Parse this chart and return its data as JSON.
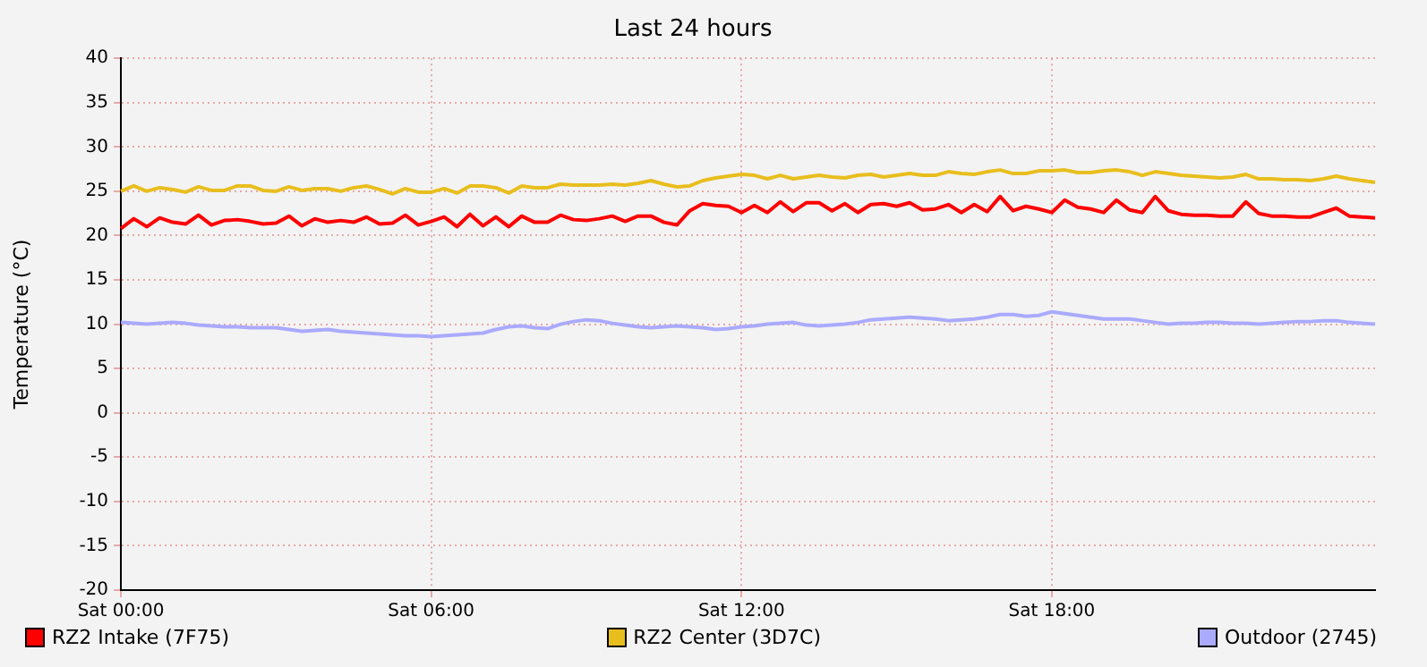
{
  "chart_data": {
    "type": "line",
    "title": "Last 24 hours",
    "ylabel": "Temperature (°C)",
    "categories": [
      "Sat 00:00",
      null,
      null,
      null,
      null,
      null,
      null,
      null,
      null,
      null,
      null,
      null,
      null,
      null,
      null,
      null,
      null,
      null,
      null,
      null,
      null,
      null,
      null,
      null,
      "Sat 06:00",
      null,
      null,
      null,
      null,
      null,
      null,
      null,
      null,
      null,
      null,
      null,
      null,
      null,
      null,
      null,
      null,
      null,
      null,
      null,
      null,
      null,
      null,
      null,
      "Sat 12:00",
      null,
      null,
      null,
      null,
      null,
      null,
      null,
      null,
      null,
      null,
      null,
      null,
      null,
      null,
      null,
      null,
      null,
      null,
      null,
      null,
      null,
      null,
      null,
      "Sat 18:00",
      null,
      null,
      null,
      null,
      null,
      null,
      null,
      null,
      null,
      null,
      null,
      null,
      null,
      null,
      null,
      null,
      null,
      null,
      null,
      null,
      null,
      null,
      null,
      null,
      null
    ],
    "ylim": [
      -20,
      40
    ],
    "yticks": [
      -20,
      -15,
      -10,
      -5,
      0,
      5,
      10,
      15,
      20,
      25,
      30,
      35,
      40
    ],
    "grid": true,
    "legend": "bottom",
    "marker": "none",
    "line_style": "solid",
    "series": [
      {
        "name": "RZ2 Intake (7F75)",
        "color": "#ff0000",
        "values": [
          20.8,
          21.9,
          21.0,
          22.0,
          21.5,
          21.3,
          22.3,
          21.2,
          21.7,
          21.8,
          21.6,
          21.3,
          21.4,
          22.2,
          21.1,
          21.9,
          21.5,
          21.7,
          21.5,
          22.1,
          21.3,
          21.4,
          22.3,
          21.2,
          21.6,
          22.1,
          21.0,
          22.4,
          21.1,
          22.1,
          21.0,
          22.2,
          21.5,
          21.5,
          22.3,
          21.8,
          21.7,
          21.9,
          22.2,
          21.6,
          22.2,
          22.2,
          21.5,
          21.2,
          22.8,
          23.6,
          23.4,
          23.3,
          22.6,
          23.4,
          22.6,
          23.8,
          22.7,
          23.7,
          23.7,
          22.8,
          23.6,
          22.6,
          23.5,
          23.6,
          23.3,
          23.7,
          22.9,
          23.0,
          23.5,
          22.6,
          23.5,
          22.7,
          24.4,
          22.8,
          23.3,
          23.0,
          22.6,
          24.0,
          23.2,
          23.0,
          22.6,
          24.0,
          22.9,
          22.6,
          24.4,
          22.8,
          22.4,
          22.3,
          22.3,
          22.2,
          22.2,
          23.8,
          22.5,
          22.2,
          22.2,
          22.1,
          22.1,
          22.6,
          23.1,
          22.2,
          22.1,
          22.0
        ]
      },
      {
        "name": "RZ2 Center (3D7C)",
        "color": "#e8be1e",
        "values": [
          25.0,
          25.6,
          25.0,
          25.4,
          25.2,
          24.9,
          25.5,
          25.1,
          25.1,
          25.6,
          25.6,
          25.1,
          25.0,
          25.5,
          25.1,
          25.3,
          25.3,
          25.0,
          25.4,
          25.6,
          25.2,
          24.7,
          25.3,
          24.9,
          24.9,
          25.3,
          24.8,
          25.6,
          25.6,
          25.4,
          24.8,
          25.6,
          25.4,
          25.4,
          25.8,
          25.7,
          25.7,
          25.7,
          25.8,
          25.7,
          25.9,
          26.2,
          25.8,
          25.5,
          25.6,
          26.2,
          26.5,
          26.7,
          26.9,
          26.8,
          26.4,
          26.8,
          26.4,
          26.6,
          26.8,
          26.6,
          26.5,
          26.8,
          26.9,
          26.6,
          26.8,
          27.0,
          26.8,
          26.8,
          27.2,
          27.0,
          26.9,
          27.2,
          27.4,
          27.0,
          27.0,
          27.3,
          27.3,
          27.4,
          27.1,
          27.1,
          27.3,
          27.4,
          27.2,
          26.8,
          27.2,
          27.0,
          26.8,
          26.7,
          26.6,
          26.5,
          26.6,
          26.9,
          26.4,
          26.4,
          26.3,
          26.3,
          26.2,
          26.4,
          26.7,
          26.4,
          26.2,
          26.0
        ]
      },
      {
        "name": "Outdoor (2745)",
        "color": "#aaaaff",
        "values": [
          10.2,
          10.1,
          10.0,
          10.1,
          10.2,
          10.1,
          9.9,
          9.8,
          9.7,
          9.7,
          9.6,
          9.6,
          9.6,
          9.4,
          9.2,
          9.3,
          9.4,
          9.2,
          9.1,
          9.0,
          8.9,
          8.8,
          8.7,
          8.7,
          8.6,
          8.7,
          8.8,
          8.9,
          9.0,
          9.4,
          9.7,
          9.8,
          9.6,
          9.5,
          10.0,
          10.3,
          10.5,
          10.4,
          10.1,
          9.9,
          9.7,
          9.6,
          9.7,
          9.8,
          9.7,
          9.6,
          9.4,
          9.5,
          9.7,
          9.8,
          10.0,
          10.1,
          10.2,
          9.9,
          9.8,
          9.9,
          10.0,
          10.2,
          10.5,
          10.6,
          10.7,
          10.8,
          10.7,
          10.6,
          10.4,
          10.5,
          10.6,
          10.8,
          11.1,
          11.1,
          10.9,
          11.0,
          11.4,
          11.2,
          11.0,
          10.8,
          10.6,
          10.6,
          10.6,
          10.4,
          10.2,
          10.0,
          10.1,
          10.1,
          10.2,
          10.2,
          10.1,
          10.1,
          10.0,
          10.1,
          10.2,
          10.3,
          10.3,
          10.4,
          10.4,
          10.2,
          10.1,
          10.0
        ]
      }
    ]
  }
}
